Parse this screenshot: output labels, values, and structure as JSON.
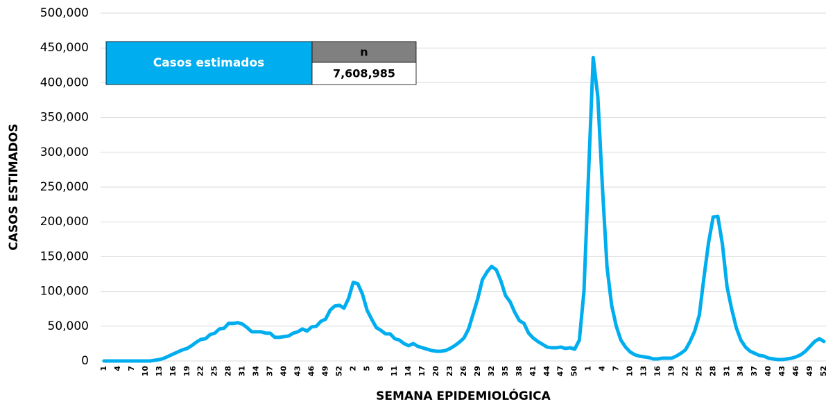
{
  "chart_data": {
    "type": "line",
    "x_label": "SEMANA EPIDEMIOLÓGICA",
    "y_label": "CASOS ESTIMADOS",
    "categories": [
      "1",
      null,
      null,
      "4",
      null,
      null,
      "7",
      null,
      null,
      "10",
      null,
      null,
      "13",
      null,
      null,
      "16",
      null,
      null,
      "19",
      null,
      null,
      "22",
      null,
      null,
      "25",
      null,
      null,
      "28",
      null,
      null,
      "31",
      null,
      null,
      "34",
      null,
      null,
      "37",
      null,
      null,
      "40",
      null,
      null,
      "43",
      null,
      null,
      "46",
      null,
      null,
      "49",
      null,
      null,
      "52",
      null,
      null,
      "2",
      null,
      null,
      "5",
      null,
      null,
      "8",
      null,
      null,
      "11",
      null,
      null,
      "14",
      null,
      null,
      "17",
      null,
      null,
      "20",
      null,
      null,
      "23",
      null,
      null,
      "26",
      null,
      null,
      "29",
      null,
      null,
      "32",
      null,
      null,
      "35",
      null,
      null,
      "38",
      null,
      null,
      "41",
      null,
      null,
      "44",
      null,
      null,
      "47",
      null,
      null,
      "50",
      null,
      null,
      "1",
      null,
      null,
      "4",
      null,
      null,
      "7",
      null,
      null,
      "10",
      null,
      null,
      "13",
      null,
      null,
      "16",
      null,
      null,
      "19",
      null,
      null,
      "22",
      null,
      null,
      "25",
      null,
      null,
      "28",
      null,
      null,
      "31",
      null,
      null,
      "34",
      null,
      null,
      "37",
      null,
      null,
      "40",
      null,
      null,
      "43",
      null,
      null,
      "46",
      null,
      null,
      "49",
      null,
      null,
      "52"
    ],
    "values": [
      0,
      0,
      0,
      0,
      0,
      0,
      0,
      0,
      0,
      0,
      0,
      1000,
      2000,
      4000,
      7000,
      10000,
      13000,
      16000,
      18000,
      22000,
      27000,
      31000,
      32000,
      38000,
      40000,
      46000,
      47000,
      54000,
      54000,
      55000,
      53000,
      48000,
      42000,
      42000,
      42000,
      40000,
      40000,
      34000,
      34000,
      35000,
      36000,
      40000,
      42000,
      46000,
      43000,
      49000,
      50000,
      57000,
      60000,
      73000,
      79000,
      80000,
      76000,
      90000,
      113000,
      111000,
      96000,
      73000,
      60000,
      48000,
      44000,
      39000,
      39000,
      32000,
      30000,
      25000,
      22000,
      25000,
      21000,
      19000,
      17000,
      15000,
      14000,
      14000,
      15000,
      18000,
      22000,
      27000,
      33000,
      46000,
      68000,
      90000,
      117000,
      128000,
      136000,
      131000,
      115000,
      94000,
      85000,
      70000,
      58000,
      54000,
      40000,
      33000,
      28000,
      24000,
      20000,
      19000,
      19000,
      20000,
      18000,
      19000,
      17000,
      30000,
      100000,
      270000,
      436000,
      380000,
      250000,
      135000,
      80000,
      50000,
      30000,
      20000,
      13000,
      9000,
      7000,
      6000,
      5000,
      3000,
      3000,
      4000,
      4000,
      4000,
      7000,
      11000,
      16000,
      28000,
      43000,
      66000,
      120000,
      170000,
      207000,
      208000,
      168000,
      107000,
      75000,
      48000,
      30000,
      20000,
      14000,
      11000,
      8000,
      7000,
      4000,
      3000,
      2000,
      2000,
      3000,
      4000,
      6000,
      9000,
      14000,
      21000,
      28000,
      32000,
      28000
    ],
    "color": "#00aeef",
    "ylim": [
      0,
      500000
    ],
    "yticks": [
      0,
      {
        "value": 50000,
        "label": "50,000"
      },
      {
        "value": 100000,
        "label": "100,000"
      },
      {
        "value": 150000,
        "label": "150,000"
      },
      {
        "value": 200000,
        "label": "200,000"
      },
      {
        "value": 250000,
        "label": "250,000"
      },
      {
        "value": 300000,
        "label": "300,000"
      },
      {
        "value": 350000,
        "label": "350,000"
      },
      {
        "value": 400000,
        "label": "400,000"
      },
      {
        "value": 450000,
        "label": "450,000"
      },
      {
        "value": 500000,
        "label": "500,000"
      }
    ],
    "grid": true
  },
  "summary_table": {
    "label": "Casos estimados",
    "header": "n",
    "value": "7,608,985"
  }
}
